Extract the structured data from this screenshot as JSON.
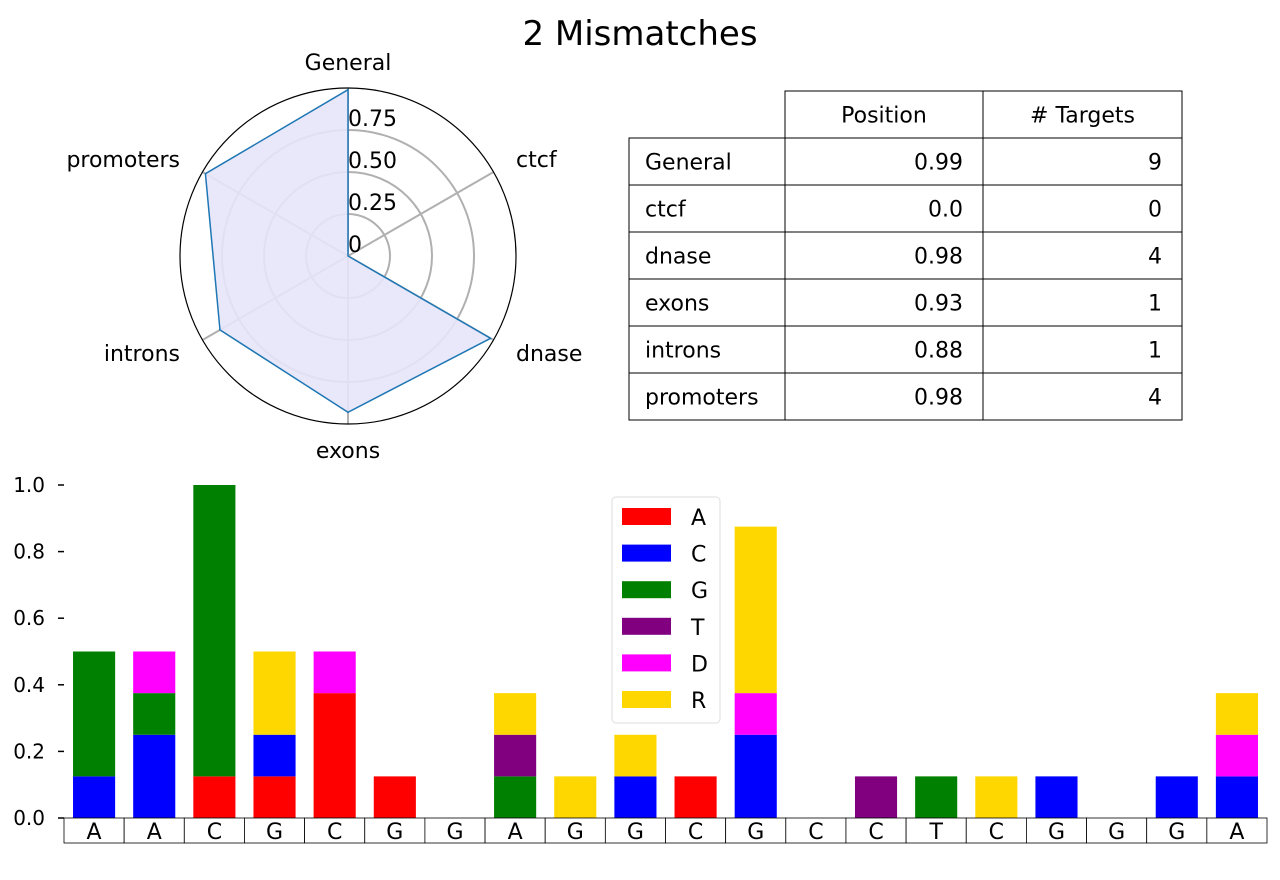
{
  "title": "2 Mismatches",
  "chart_data": [
    {
      "type": "radar",
      "axes": [
        "General",
        "ctcf",
        "dnase",
        "exons",
        "introns",
        "promoters"
      ],
      "values": [
        0.99,
        0.0,
        0.98,
        0.93,
        0.88,
        0.98
      ],
      "r_ticks": [
        0,
        0.25,
        0.5,
        0.75
      ],
      "r_tick_labels": [
        "0",
        "0.25",
        "0.50",
        "0.75"
      ],
      "rlim": [
        0,
        1
      ],
      "colors": {
        "line": "#1f77b4",
        "fill": "#e6e6fa"
      }
    },
    {
      "type": "table",
      "columns": [
        "",
        "Position",
        "# Targets"
      ],
      "rows": [
        [
          "General",
          "0.99",
          "9"
        ],
        [
          "ctcf",
          "0.0",
          "0"
        ],
        [
          "dnase",
          "0.98",
          "4"
        ],
        [
          "exons",
          "0.93",
          "1"
        ],
        [
          "introns",
          "0.88",
          "1"
        ],
        [
          "promoters",
          "0.98",
          "4"
        ]
      ]
    },
    {
      "type": "bar",
      "stacked": true,
      "categories": [
        "A",
        "A",
        "C",
        "G",
        "C",
        "G",
        "G",
        "A",
        "G",
        "G",
        "C",
        "G",
        "C",
        "C",
        "T",
        "C",
        "G",
        "G",
        "G",
        "A"
      ],
      "series": [
        {
          "name": "A",
          "color": "#ff0000",
          "values": [
            0,
            0,
            0.125,
            0.125,
            0.375,
            0.125,
            0,
            0,
            0,
            0,
            0.125,
            0,
            0,
            0,
            0,
            0,
            0,
            0,
            0,
            0
          ]
        },
        {
          "name": "C",
          "color": "#0000ff",
          "values": [
            0.125,
            0.25,
            0,
            0.125,
            0,
            0,
            0,
            0,
            0,
            0.125,
            0,
            0.25,
            0,
            0,
            0,
            0,
            0.125,
            0,
            0.125,
            0.125
          ]
        },
        {
          "name": "G",
          "color": "#008000",
          "values": [
            0.375,
            0.125,
            0.875,
            0,
            0,
            0,
            0,
            0.125,
            0,
            0,
            0,
            0,
            0,
            0,
            0.125,
            0,
            0,
            0,
            0,
            0
          ]
        },
        {
          "name": "T",
          "color": "#800080",
          "values": [
            0,
            0,
            0,
            0,
            0,
            0,
            0,
            0.125,
            0,
            0,
            0,
            0,
            0,
            0.125,
            0,
            0,
            0,
            0,
            0,
            0
          ]
        },
        {
          "name": "D",
          "color": "#ff00ff",
          "values": [
            0,
            0.125,
            0,
            0,
            0.125,
            0,
            0,
            0,
            0,
            0,
            0,
            0.125,
            0,
            0,
            0,
            0,
            0,
            0,
            0,
            0.125
          ]
        },
        {
          "name": "R",
          "color": "#ffd700",
          "values": [
            0,
            0,
            0,
            0.25,
            0,
            0,
            0,
            0.125,
            0.125,
            0.125,
            0,
            0.5,
            0,
            0,
            0,
            0.125,
            0,
            0,
            0,
            0.125
          ]
        }
      ],
      "ylim": [
        0,
        1.0
      ],
      "y_ticks": [
        0,
        0.2,
        0.4,
        0.6,
        0.8,
        1.0
      ],
      "y_tick_labels": [
        "0.0",
        "0.2",
        "0.4",
        "0.6",
        "0.8",
        "1.0"
      ],
      "legend": "inside-upper-center",
      "grid": false
    }
  ]
}
